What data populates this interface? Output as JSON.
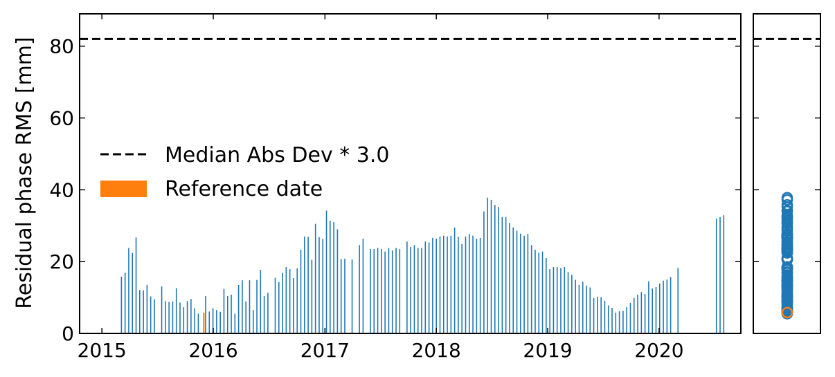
{
  "chart_data": [
    {
      "type": "bar",
      "title": "",
      "xlabel": "",
      "ylabel": "Residual phase RMS [mm]",
      "xlim": [
        "2014-10-20",
        "2020-09-25"
      ],
      "ylim": [
        0,
        89
      ],
      "x_ticks": [
        "2015",
        "2016",
        "2017",
        "2018",
        "2019",
        "2020"
      ],
      "y_ticks": [
        0,
        20,
        40,
        60,
        80
      ],
      "grid": false,
      "legend_position": "center-left",
      "legend": [
        {
          "label": "Median Abs Dev * 3.0",
          "style": "dashed-line",
          "color": "#000000"
        },
        {
          "label": "Reference date",
          "style": "filled-box",
          "color": "#ff7f0e"
        }
      ],
      "threshold": {
        "name": "Median Abs Dev * 3.0",
        "value": 82
      },
      "reference_date": {
        "name": "Reference date",
        "date": "2015-12-01",
        "value": 5.8
      },
      "series": [
        {
          "name": "Residual phase RMS",
          "color": "#1f77b4",
          "points": [
            [
              "2015-03-06",
              15.8
            ],
            [
              "2015-03-18",
              16.9
            ],
            [
              "2015-03-30",
              23.8
            ],
            [
              "2015-04-11",
              22.4
            ],
            [
              "2015-04-23",
              26.7
            ],
            [
              "2015-05-05",
              12.1
            ],
            [
              "2015-05-17",
              12.0
            ],
            [
              "2015-05-29",
              13.5
            ],
            [
              "2015-06-10",
              10.3
            ],
            [
              "2015-06-22",
              9.5
            ],
            [
              "2015-07-16",
              13.1
            ],
            [
              "2015-07-28",
              9.0
            ],
            [
              "2015-08-09",
              8.8
            ],
            [
              "2015-08-21",
              8.9
            ],
            [
              "2015-09-02",
              12.6
            ],
            [
              "2015-09-14",
              8.6
            ],
            [
              "2015-09-26",
              7.3
            ],
            [
              "2015-10-08",
              9.0
            ],
            [
              "2015-10-20",
              9.6
            ],
            [
              "2015-11-01",
              7.0
            ],
            [
              "2015-11-13",
              5.5
            ],
            [
              "2015-12-07",
              10.4
            ],
            [
              "2015-12-19",
              6.1
            ],
            [
              "2015-12-31",
              7.0
            ],
            [
              "2016-01-12",
              6.5
            ],
            [
              "2016-01-24",
              6.0
            ],
            [
              "2016-02-05",
              12.4
            ],
            [
              "2016-02-17",
              10.4
            ],
            [
              "2016-02-29",
              10.8
            ],
            [
              "2016-03-12",
              5.5
            ],
            [
              "2016-03-24",
              13.5
            ],
            [
              "2016-04-05",
              14.8
            ],
            [
              "2016-04-17",
              8.9
            ],
            [
              "2016-04-29",
              14.8
            ],
            [
              "2016-05-11",
              6.5
            ],
            [
              "2016-05-23",
              14.9
            ],
            [
              "2016-06-04",
              17.7
            ],
            [
              "2016-06-16",
              10.4
            ],
            [
              "2016-06-28",
              11.3
            ],
            [
              "2016-07-22",
              15.5
            ],
            [
              "2016-08-03",
              14.3
            ],
            [
              "2016-08-15",
              16.9
            ],
            [
              "2016-08-27",
              18.5
            ],
            [
              "2016-09-08",
              17.9
            ],
            [
              "2016-09-20",
              15.4
            ],
            [
              "2016-10-02",
              18.1
            ],
            [
              "2016-10-14",
              23.3
            ],
            [
              "2016-10-26",
              27.0
            ],
            [
              "2016-11-07",
              26.9
            ],
            [
              "2016-11-19",
              20.5
            ],
            [
              "2016-12-01",
              30.5
            ],
            [
              "2016-12-13",
              26.8
            ],
            [
              "2016-12-25",
              26.3
            ],
            [
              "2017-01-06",
              34.2
            ],
            [
              "2017-01-18",
              31.4
            ],
            [
              "2017-01-30",
              31.0
            ],
            [
              "2017-02-11",
              29.0
            ],
            [
              "2017-02-23",
              20.7
            ],
            [
              "2017-03-07",
              20.8
            ],
            [
              "2017-03-31",
              20.6
            ],
            [
              "2017-04-24",
              24.6
            ],
            [
              "2017-05-06",
              26.4
            ],
            [
              "2017-05-30",
              23.5
            ],
            [
              "2017-06-11",
              23.5
            ],
            [
              "2017-06-23",
              23.8
            ],
            [
              "2017-07-05",
              23.5
            ],
            [
              "2017-07-17",
              22.8
            ],
            [
              "2017-07-29",
              23.8
            ],
            [
              "2017-08-10",
              23.1
            ],
            [
              "2017-08-22",
              23.8
            ],
            [
              "2017-09-03",
              23.5
            ],
            [
              "2017-09-27",
              25.6
            ],
            [
              "2017-10-09",
              24.1
            ],
            [
              "2017-10-21",
              24.6
            ],
            [
              "2017-11-02",
              23.8
            ],
            [
              "2017-11-14",
              23.8
            ],
            [
              "2017-11-26",
              25.6
            ],
            [
              "2017-12-08",
              25.3
            ],
            [
              "2017-12-20",
              26.6
            ],
            [
              "2018-01-01",
              26.4
            ],
            [
              "2018-01-13",
              27.0
            ],
            [
              "2018-01-25",
              27.2
            ],
            [
              "2018-02-06",
              27.0
            ],
            [
              "2018-02-18",
              27.2
            ],
            [
              "2018-03-02",
              29.5
            ],
            [
              "2018-03-14",
              26.9
            ],
            [
              "2018-03-26",
              24.9
            ],
            [
              "2018-04-07",
              27.0
            ],
            [
              "2018-04-19",
              27.7
            ],
            [
              "2018-05-01",
              27.2
            ],
            [
              "2018-05-13",
              26.4
            ],
            [
              "2018-05-25",
              26.6
            ],
            [
              "2018-06-06",
              34.0
            ],
            [
              "2018-06-18",
              37.8
            ],
            [
              "2018-06-30",
              37.2
            ],
            [
              "2018-07-12",
              35.8
            ],
            [
              "2018-07-24",
              35.2
            ],
            [
              "2018-08-05",
              32.4
            ],
            [
              "2018-08-17",
              32.4
            ],
            [
              "2018-08-29",
              30.8
            ],
            [
              "2018-09-10",
              29.5
            ],
            [
              "2018-09-22",
              28.6
            ],
            [
              "2018-10-04",
              27.8
            ],
            [
              "2018-10-16",
              27.2
            ],
            [
              "2018-10-28",
              27.7
            ],
            [
              "2018-11-09",
              24.6
            ],
            [
              "2018-11-21",
              23.3
            ],
            [
              "2018-12-03",
              22.5
            ],
            [
              "2018-12-15",
              22.8
            ],
            [
              "2018-12-27",
              21.0
            ],
            [
              "2019-01-08",
              17.9
            ],
            [
              "2019-01-20",
              18.5
            ],
            [
              "2019-02-01",
              18.5
            ],
            [
              "2019-02-13",
              18.2
            ],
            [
              "2019-02-25",
              18.5
            ],
            [
              "2019-03-09",
              17.1
            ],
            [
              "2019-03-21",
              16.3
            ],
            [
              "2019-04-02",
              14.9
            ],
            [
              "2019-04-14",
              13.5
            ],
            [
              "2019-04-26",
              14.4
            ],
            [
              "2019-05-08",
              13.3
            ],
            [
              "2019-05-20",
              12.8
            ],
            [
              "2019-06-01",
              9.8
            ],
            [
              "2019-06-13",
              10.2
            ],
            [
              "2019-06-25",
              10.1
            ],
            [
              "2019-07-07",
              9.1
            ],
            [
              "2019-07-19",
              7.8
            ],
            [
              "2019-07-31",
              7.1
            ],
            [
              "2019-08-12",
              5.8
            ],
            [
              "2019-08-24",
              6.2
            ],
            [
              "2019-09-05",
              6.3
            ],
            [
              "2019-09-17",
              7.3
            ],
            [
              "2019-09-29",
              8.5
            ],
            [
              "2019-10-11",
              9.9
            ],
            [
              "2019-10-23",
              10.8
            ],
            [
              "2019-11-04",
              11.5
            ],
            [
              "2019-11-16",
              11.0
            ],
            [
              "2019-11-28",
              14.5
            ],
            [
              "2019-12-10",
              12.5
            ],
            [
              "2019-12-22",
              12.9
            ],
            [
              "2020-01-03",
              13.9
            ],
            [
              "2020-01-15",
              14.7
            ],
            [
              "2020-01-27",
              15.0
            ],
            [
              "2020-02-08",
              15.7
            ],
            [
              "2020-03-03",
              18.2
            ],
            [
              "2020-07-07",
              32.0
            ],
            [
              "2020-07-19",
              32.4
            ],
            [
              "2020-07-31",
              32.9
            ]
          ]
        }
      ]
    },
    {
      "type": "scatter",
      "title": "",
      "xlabel": "",
      "ylabel": "",
      "ylim": [
        0,
        89
      ],
      "y_ticks": [
        0,
        20,
        40,
        60,
        80
      ],
      "grid": false,
      "threshold": {
        "name": "Median Abs Dev * 3.0",
        "value": 82
      },
      "reference_value": 5.8,
      "series": [
        {
          "name": "Residual phase RMS",
          "color": "#1f77b4",
          "marker": "open-circle",
          "values": "same as bar series"
        },
        {
          "name": "Reference date",
          "color": "#ff7f0e",
          "marker": "open-circle",
          "values": [
            5.8
          ]
        }
      ]
    }
  ]
}
